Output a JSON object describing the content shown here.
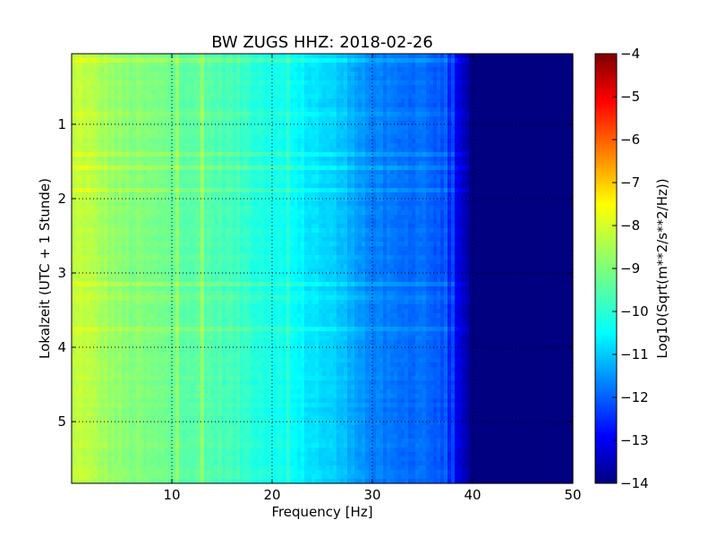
{
  "chart_data": {
    "type": "heatmap",
    "title": "BW ZUGS HHZ: 2018-02-26",
    "xlabel": "Frequency [Hz]",
    "ylabel": "Lokalzeit (UTC + 1 Stunde)",
    "xlim": [
      0,
      50
    ],
    "ylim": [
      5.83,
      0.05
    ],
    "y_inverted": true,
    "x_ticks": [
      10,
      20,
      30,
      40,
      50
    ],
    "x_tick_labels": [
      "10",
      "20",
      "30",
      "40",
      "50"
    ],
    "y_ticks": [
      1,
      2,
      3,
      4,
      5
    ],
    "y_tick_labels": [
      "1",
      "2",
      "3",
      "4",
      "5"
    ],
    "grid": true,
    "colormap": "jet",
    "colorbar": {
      "label": "Log10(Sqrt(m**2/s**2/Hz))",
      "range": [
        -14,
        -4
      ],
      "ticks": [
        -4,
        -5,
        -6,
        -7,
        -8,
        -9,
        -10,
        -11,
        -12,
        -13,
        -14
      ],
      "tick_labels": [
        "−4",
        "−5",
        "−6",
        "−7",
        "−8",
        "−9",
        "−10",
        "−11",
        "−12",
        "−13",
        "−14"
      ]
    },
    "spectral_profile": {
      "frequency_hz": [
        0,
        1,
        2,
        5,
        10,
        15,
        20,
        25,
        28,
        30,
        33,
        35,
        37,
        38,
        39,
        40,
        45,
        50
      ],
      "log_amplitude": [
        -8.5,
        -8.3,
        -8.5,
        -8.9,
        -9.2,
        -9.5,
        -10.0,
        -10.6,
        -11.0,
        -11.5,
        -11.7,
        -11.6,
        -12.0,
        -12.6,
        -13.4,
        -14.0,
        -14.0,
        -14.0
      ]
    }
  }
}
